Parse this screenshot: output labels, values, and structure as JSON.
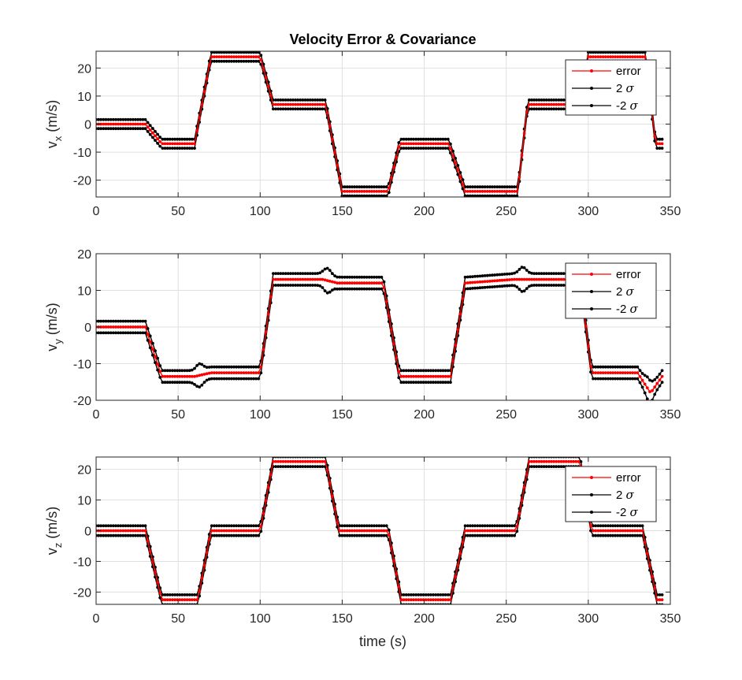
{
  "figure": {
    "title": "Velocity Error & Covariance",
    "xlabel": "time (s)"
  },
  "chart_data": [
    {
      "type": "line",
      "ylabel_main": "v",
      "ylabel_sub": "x",
      "ylabel_unit": "(m/s)",
      "xlim": [
        0,
        350
      ],
      "ylim": [
        -26,
        26
      ],
      "xticks": [
        0,
        50,
        100,
        150,
        200,
        250,
        300,
        350
      ],
      "yticks": [
        -20,
        -10,
        0,
        10,
        20
      ],
      "grid": true,
      "legend": {
        "placement": "top-right",
        "entries": [
          "error",
          "2 σ",
          "-2 σ"
        ]
      },
      "sigma": 1.6,
      "knots": [
        [
          0,
          0
        ],
        [
          30,
          0
        ],
        [
          40,
          -7
        ],
        [
          60,
          -7
        ],
        [
          70,
          24
        ],
        [
          100,
          24
        ],
        [
          108,
          7
        ],
        [
          140,
          7
        ],
        [
          150,
          -24
        ],
        [
          178,
          -24
        ],
        [
          185,
          -7
        ],
        [
          215,
          -7
        ],
        [
          225,
          -24
        ],
        [
          257,
          -24
        ],
        [
          263,
          7
        ],
        [
          295,
          7
        ],
        [
          300,
          24
        ],
        [
          335,
          24
        ],
        [
          341,
          -7
        ],
        [
          346,
          -7
        ]
      ],
      "bumps": [],
      "series": [
        {
          "name": "error",
          "color": "#ff0000"
        },
        {
          "name": "2 σ",
          "color": "#000000"
        },
        {
          "name": "-2 σ",
          "color": "#000000"
        }
      ]
    },
    {
      "type": "line",
      "ylabel_main": "v",
      "ylabel_sub": "y",
      "ylabel_unit": "(m/s)",
      "xlim": [
        0,
        350
      ],
      "ylim": [
        -20,
        20
      ],
      "xticks": [
        0,
        50,
        100,
        150,
        200,
        250,
        300,
        350
      ],
      "yticks": [
        -20,
        -10,
        0,
        10,
        20
      ],
      "grid": true,
      "legend": {
        "placement": "top-right",
        "entries": [
          "error",
          "2 σ",
          "-2 σ"
        ]
      },
      "sigma": 1.6,
      "knots": [
        [
          0,
          0
        ],
        [
          30,
          0
        ],
        [
          40,
          -13.5
        ],
        [
          60,
          -13.5
        ],
        [
          70,
          -12.5
        ],
        [
          100,
          -12.5
        ],
        [
          108,
          13
        ],
        [
          138,
          13
        ],
        [
          147,
          12
        ],
        [
          175,
          12
        ],
        [
          185,
          -13.5
        ],
        [
          216,
          -13.5
        ],
        [
          225,
          12
        ],
        [
          255,
          13
        ],
        [
          265,
          13
        ],
        [
          295,
          13
        ],
        [
          302,
          -12.5
        ],
        [
          330,
          -12.5
        ],
        [
          338,
          -18
        ],
        [
          345,
          -13.5
        ]
      ],
      "bumps": [
        [
          63,
          -4.5,
          3
        ],
        [
          141,
          5,
          3
        ],
        [
          260,
          5,
          3
        ],
        [
          337,
          -4.5,
          3
        ]
      ],
      "series": [
        {
          "name": "error",
          "color": "#ff0000"
        },
        {
          "name": "2 σ",
          "color": "#000000"
        },
        {
          "name": "-2 σ",
          "color": "#000000"
        }
      ]
    },
    {
      "type": "line",
      "ylabel_main": "v",
      "ylabel_sub": "z",
      "ylabel_unit": "(m/s)",
      "xlim": [
        0,
        350
      ],
      "ylim": [
        -24,
        24
      ],
      "xticks": [
        0,
        50,
        100,
        150,
        200,
        250,
        300,
        350
      ],
      "yticks": [
        -20,
        -10,
        0,
        10,
        20
      ],
      "grid": true,
      "legend": {
        "placement": "top-right",
        "entries": [
          "error",
          "2 σ",
          "-2 σ"
        ]
      },
      "sigma": 1.6,
      "knots": [
        [
          0,
          0
        ],
        [
          30,
          0
        ],
        [
          40,
          -22.5
        ],
        [
          62,
          -22.5
        ],
        [
          70,
          0
        ],
        [
          100,
          0
        ],
        [
          108,
          22.5
        ],
        [
          140,
          22.5
        ],
        [
          148,
          0
        ],
        [
          178,
          0
        ],
        [
          186,
          -22.5
        ],
        [
          216,
          -22.5
        ],
        [
          225,
          0
        ],
        [
          256,
          0
        ],
        [
          264,
          22.5
        ],
        [
          295,
          22.5
        ],
        [
          302,
          0
        ],
        [
          333,
          0
        ],
        [
          342,
          -22.5
        ],
        [
          346,
          -22.5
        ]
      ],
      "bumps": [],
      "series": [
        {
          "name": "error",
          "color": "#ff0000"
        },
        {
          "name": "2 σ",
          "color": "#000000"
        },
        {
          "name": "-2 σ",
          "color": "#000000"
        }
      ]
    }
  ]
}
